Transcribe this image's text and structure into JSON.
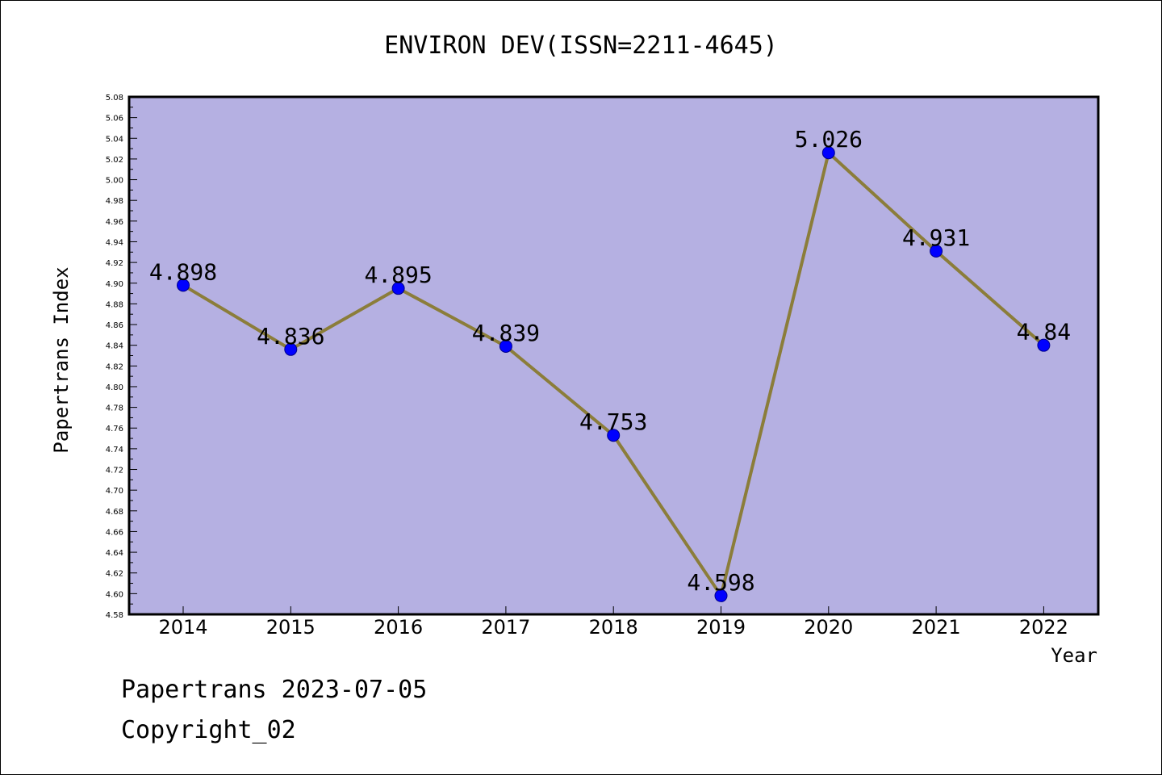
{
  "chart_data": {
    "type": "line",
    "title": "ENVIRON DEV(ISSN=2211-4645)",
    "xlabel": "Year",
    "ylabel": "Papertrans Index",
    "x": [
      "2014",
      "2015",
      "2016",
      "2017",
      "2018",
      "2019",
      "2020",
      "2021",
      "2022"
    ],
    "values": [
      4.898,
      4.836,
      4.895,
      4.839,
      4.753,
      4.598,
      5.026,
      4.931,
      4.84
    ],
    "data_labels": [
      "4.898",
      "4.836",
      "4.895",
      "4.839",
      "4.753",
      "4.598",
      "5.026",
      "4.931",
      "4.84"
    ],
    "ylim": [
      4.58,
      5.08
    ],
    "yticks": [
      "4.58",
      "4.60",
      "4.62",
      "4.64",
      "4.66",
      "4.68",
      "4.70",
      "4.72",
      "4.74",
      "4.76",
      "4.78",
      "4.80",
      "4.82",
      "4.84",
      "4.86",
      "4.88",
      "4.90",
      "4.92",
      "4.94",
      "4.96",
      "4.98",
      "5.00",
      "5.02",
      "5.04",
      "5.06",
      "5.08"
    ],
    "grid": false,
    "colors": {
      "plot_background": "#b5b0e2",
      "line": "#8b7d3a",
      "marker": "#0000ff"
    }
  },
  "footer": {
    "line1": "Papertrans 2023-07-05",
    "line2": "Copyright_02"
  }
}
